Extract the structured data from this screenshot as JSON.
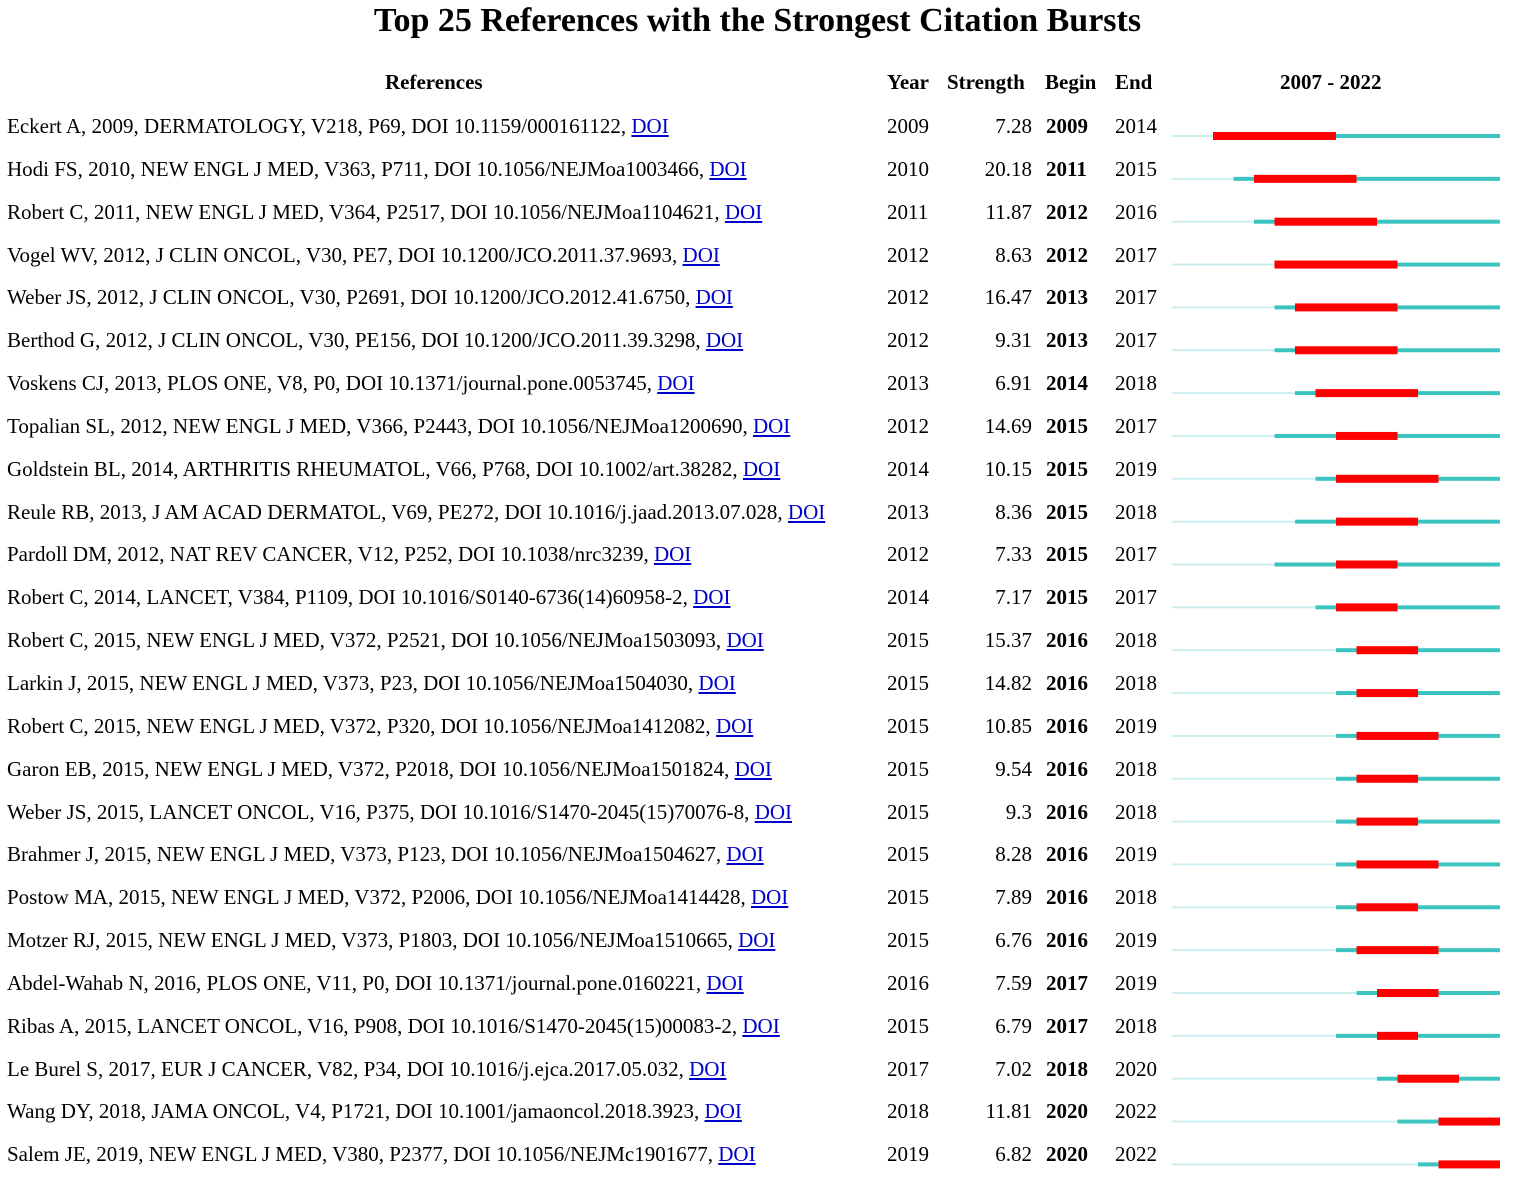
{
  "chart_data": {
    "type": "table",
    "title": "Top 25 References with the Strongest Citation Bursts",
    "headers": {
      "references": "References",
      "year": "Year",
      "strength": "Strength",
      "begin": "Begin",
      "end": "End",
      "range": "2007 - 2022"
    },
    "range": [
      2007,
      2022
    ],
    "colors": {
      "burst": "#ff0000",
      "active": "#3cc4c0",
      "inactive": "#cdeeee",
      "link": "#0000cc"
    },
    "rows": [
      {
        "ref": "Eckert A, 2009, DERMATOLOGY, V218, P69, DOI 10.1159/000161122, ",
        "doi": "DOI",
        "year": "2009",
        "strength": "7.28",
        "begin": "2009",
        "end": "2014"
      },
      {
        "ref": "Hodi FS, 2010, NEW ENGL J MED, V363, P711, DOI 10.1056/NEJMoa1003466, ",
        "doi": "DOI",
        "year": "2010",
        "strength": "20.18",
        "begin": "2011",
        "end": "2015"
      },
      {
        "ref": "Robert C, 2011, NEW ENGL J MED, V364, P2517, DOI 10.1056/NEJMoa1104621, ",
        "doi": "DOI",
        "year": "2011",
        "strength": "11.87",
        "begin": "2012",
        "end": "2016"
      },
      {
        "ref": "Vogel WV, 2012, J CLIN ONCOL, V30, PE7, DOI 10.1200/JCO.2011.37.9693, ",
        "doi": "DOI",
        "year": "2012",
        "strength": "8.63",
        "begin": "2012",
        "end": "2017"
      },
      {
        "ref": "Weber JS, 2012, J CLIN ONCOL, V30, P2691, DOI 10.1200/JCO.2012.41.6750, ",
        "doi": "DOI",
        "year": "2012",
        "strength": "16.47",
        "begin": "2013",
        "end": "2017"
      },
      {
        "ref": "Berthod G, 2012, J CLIN ONCOL, V30, PE156, DOI 10.1200/JCO.2011.39.3298, ",
        "doi": "DOI",
        "year": "2012",
        "strength": "9.31",
        "begin": "2013",
        "end": "2017"
      },
      {
        "ref": "Voskens CJ, 2013, PLOS ONE, V8, P0, DOI 10.1371/journal.pone.0053745, ",
        "doi": "DOI",
        "year": "2013",
        "strength": "6.91",
        "begin": "2014",
        "end": "2018"
      },
      {
        "ref": "Topalian SL, 2012, NEW ENGL J MED, V366, P2443, DOI 10.1056/NEJMoa1200690, ",
        "doi": "DOI",
        "year": "2012",
        "strength": "14.69",
        "begin": "2015",
        "end": "2017"
      },
      {
        "ref": "Goldstein BL, 2014, ARTHRITIS RHEUMATOL, V66, P768, DOI 10.1002/art.38282, ",
        "doi": "DOI",
        "year": "2014",
        "strength": "10.15",
        "begin": "2015",
        "end": "2019"
      },
      {
        "ref": "Reule RB, 2013, J AM ACAD DERMATOL, V69, PE272, DOI 10.1016/j.jaad.2013.07.028, ",
        "doi": "DOI",
        "year": "2013",
        "strength": "8.36",
        "begin": "2015",
        "end": "2018"
      },
      {
        "ref": "Pardoll DM, 2012, NAT REV CANCER, V12, P252, DOI 10.1038/nrc3239, ",
        "doi": "DOI",
        "year": "2012",
        "strength": "7.33",
        "begin": "2015",
        "end": "2017"
      },
      {
        "ref": "Robert C, 2014, LANCET, V384, P1109, DOI 10.1016/S0140-6736(14)60958-2, ",
        "doi": "DOI",
        "year": "2014",
        "strength": "7.17",
        "begin": "2015",
        "end": "2017"
      },
      {
        "ref": "Robert C, 2015, NEW ENGL J MED, V372, P2521, DOI 10.1056/NEJMoa1503093, ",
        "doi": "DOI",
        "year": "2015",
        "strength": "15.37",
        "begin": "2016",
        "end": "2018"
      },
      {
        "ref": "Larkin J, 2015, NEW ENGL J MED, V373, P23, DOI 10.1056/NEJMoa1504030, ",
        "doi": "DOI",
        "year": "2015",
        "strength": "14.82",
        "begin": "2016",
        "end": "2018"
      },
      {
        "ref": "Robert C, 2015, NEW ENGL J MED, V372, P320, DOI 10.1056/NEJMoa1412082, ",
        "doi": "DOI",
        "year": "2015",
        "strength": "10.85",
        "begin": "2016",
        "end": "2019"
      },
      {
        "ref": "Garon EB, 2015, NEW ENGL J MED, V372, P2018, DOI 10.1056/NEJMoa1501824, ",
        "doi": "DOI",
        "year": "2015",
        "strength": "9.54",
        "begin": "2016",
        "end": "2018"
      },
      {
        "ref": "Weber JS, 2015, LANCET ONCOL, V16, P375, DOI 10.1016/S1470-2045(15)70076-8, ",
        "doi": "DOI",
        "year": "2015",
        "strength": "9.3",
        "begin": "2016",
        "end": "2018"
      },
      {
        "ref": "Brahmer J, 2015, NEW ENGL J MED, V373, P123, DOI 10.1056/NEJMoa1504627, ",
        "doi": "DOI",
        "year": "2015",
        "strength": "8.28",
        "begin": "2016",
        "end": "2019"
      },
      {
        "ref": "Postow MA, 2015, NEW ENGL J MED, V372, P2006, DOI 10.1056/NEJMoa1414428, ",
        "doi": "DOI",
        "year": "2015",
        "strength": "7.89",
        "begin": "2016",
        "end": "2018"
      },
      {
        "ref": "Motzer RJ, 2015, NEW ENGL J MED, V373, P1803, DOI 10.1056/NEJMoa1510665, ",
        "doi": "DOI",
        "year": "2015",
        "strength": "6.76",
        "begin": "2016",
        "end": "2019"
      },
      {
        "ref": "Abdel-Wahab N, 2016, PLOS ONE, V11, P0, DOI 10.1371/journal.pone.0160221, ",
        "doi": "DOI",
        "year": "2016",
        "strength": "7.59",
        "begin": "2017",
        "end": "2019"
      },
      {
        "ref": "Ribas A, 2015, LANCET ONCOL, V16, P908, DOI 10.1016/S1470-2045(15)00083-2, ",
        "doi": "DOI",
        "year": "2015",
        "strength": "6.79",
        "begin": "2017",
        "end": "2018"
      },
      {
        "ref": "Le Burel S, 2017, EUR J CANCER, V82, P34, DOI 10.1016/j.ejca.2017.05.032, ",
        "doi": "DOI",
        "year": "2017",
        "strength": "7.02",
        "begin": "2018",
        "end": "2020"
      },
      {
        "ref": "Wang DY, 2018, JAMA ONCOL, V4, P1721, DOI 10.1001/jamaoncol.2018.3923, ",
        "doi": "DOI",
        "year": "2018",
        "strength": "11.81",
        "begin": "2020",
        "end": "2022"
      },
      {
        "ref": "Salem JE, 2019, NEW ENGL J MED, V380, P2377, DOI 10.1056/NEJMc1901677, ",
        "doi": "DOI",
        "year": "2019",
        "strength": "6.82",
        "begin": "2020",
        "end": "2022"
      }
    ]
  }
}
